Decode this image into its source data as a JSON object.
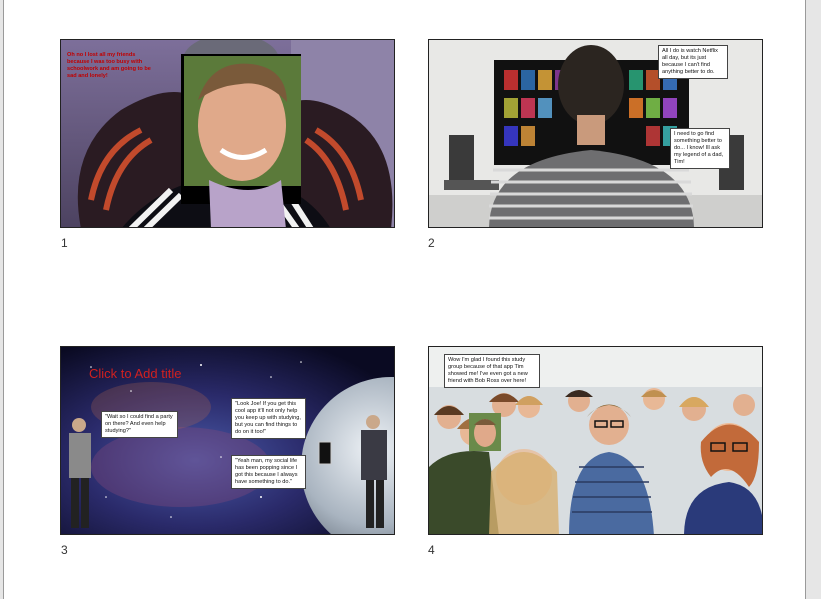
{
  "slides": [
    {
      "number": "1",
      "note": "Oh no I lost all my friends because I was too busy with schoolwork and am going to be sad and lonely!"
    },
    {
      "number": "2",
      "bubble_top": "All I do is watch Netflix all day, but its just because I can't find anything better to do.",
      "bubble_bottom": "I need to go find something better to do... I know! Ill ask my legend of a dad, Tim!"
    },
    {
      "number": "3",
      "title_placeholder": "Click to Add title",
      "bubble_left": "\"Wait so I could find a party on there? And even help studying?\"",
      "bubble_right_top": "\"Look Joe! If you get this cool app it'll not only help you keep up with studying, but you can find things to do on it too!\"",
      "bubble_right_bottom": "\"Yeah man, my social life has been popping since I got this because I always have something to do.\""
    },
    {
      "number": "4",
      "bubble": "Wow I'm glad I found this study group because of that app Tim showed me! I've even got a new friend with Bob Ross over here!"
    }
  ],
  "colors": {
    "note_red": "#c00000",
    "title_red": "#d02020"
  }
}
